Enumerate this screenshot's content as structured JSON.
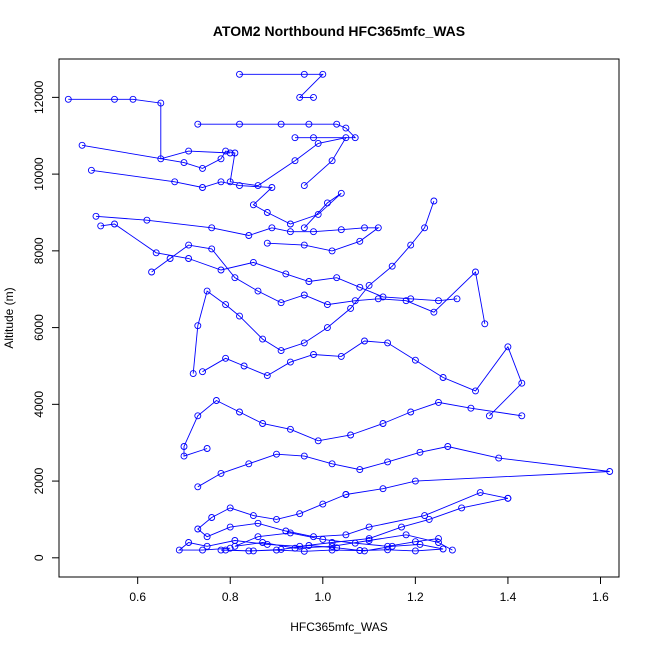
{
  "chart_data": {
    "type": "line",
    "title": "ATOM2 Northbound HFC365mfc_WAS",
    "xlabel": "HFC365mfc_WAS",
    "ylabel": "Altitude (m)",
    "xlim": [
      0.43,
      1.64
    ],
    "ylim": [
      -500,
      13000
    ],
    "x_ticks": [
      0.6,
      0.8,
      1.0,
      1.2,
      1.4,
      1.6
    ],
    "y_ticks": [
      0,
      2000,
      4000,
      6000,
      8000,
      10000,
      12000
    ],
    "grid": false,
    "series_color": "#0000ff",
    "series": [
      {
        "x": [
          0.82,
          0.96,
          1.0,
          0.95,
          0.98
        ],
        "y": [
          12600,
          12600,
          12600,
          12000,
          12000
        ]
      },
      {
        "x": [
          0.45,
          0.55,
          0.59,
          0.65,
          0.65,
          0.71,
          0.8
        ],
        "y": [
          11950,
          11950,
          11950,
          11850,
          10400,
          10600,
          10550
        ]
      },
      {
        "x": [
          0.73,
          0.82,
          0.91,
          0.97,
          1.03,
          1.05,
          1.07,
          0.98,
          0.94
        ],
        "y": [
          11300,
          11300,
          11300,
          11300,
          11300,
          11200,
          10950,
          10950,
          10950
        ]
      },
      {
        "x": [
          0.48,
          0.7,
          0.74,
          0.78,
          0.79,
          0.81,
          0.8,
          0.86,
          0.94,
          0.99,
          1.05,
          1.02,
          0.96
        ],
        "y": [
          10750,
          10300,
          10150,
          10400,
          10600,
          10550,
          9800,
          9700,
          10350,
          10800,
          10950,
          10350,
          9700
        ]
      },
      {
        "x": [
          0.5,
          0.68,
          0.74,
          0.78,
          0.82,
          0.89,
          0.85,
          0.88,
          0.93,
          0.99,
          1.04,
          1.01,
          0.96
        ],
        "y": [
          10100,
          9800,
          9650,
          9800,
          9700,
          9650,
          9200,
          9000,
          8700,
          8950,
          9500,
          9250,
          8600
        ]
      },
      {
        "x": [
          0.51,
          0.62,
          0.76,
          0.84,
          0.89,
          0.93,
          0.98,
          1.04,
          1.09,
          1.12,
          1.08,
          1.02,
          0.96,
          0.88
        ],
        "y": [
          8900,
          8800,
          8600,
          8400,
          8600,
          8500,
          8500,
          8550,
          8600,
          8600,
          8250,
          8000,
          8150,
          8200
        ]
      },
      {
        "x": [
          0.52,
          0.55,
          0.64,
          0.71,
          0.78,
          0.85,
          0.92,
          0.97,
          1.03,
          1.08,
          1.13,
          1.19,
          1.25,
          1.29
        ],
        "y": [
          8650,
          8700,
          7950,
          7800,
          7500,
          7700,
          7400,
          7200,
          7300,
          7050,
          6800,
          6750,
          6700,
          6750
        ]
      },
      {
        "x": [
          0.63,
          0.67,
          0.71,
          0.76,
          0.81,
          0.86,
          0.91,
          0.96,
          1.01,
          1.07,
          1.12,
          1.18,
          1.24,
          1.33,
          1.35
        ],
        "y": [
          7450,
          7800,
          8150,
          8050,
          7300,
          6950,
          6650,
          6850,
          6600,
          6700,
          6750,
          6700,
          6400,
          7450,
          6100
        ]
      },
      {
        "x": [
          1.24,
          1.22,
          1.19,
          1.15,
          1.1,
          1.06,
          1.01,
          0.96,
          0.91,
          0.87,
          0.82,
          0.79,
          0.75,
          0.73,
          0.72
        ],
        "y": [
          9300,
          8600,
          8150,
          7600,
          7100,
          6500,
          6000,
          5600,
          5400,
          5700,
          6300,
          6600,
          6950,
          6050,
          4800
        ]
      },
      {
        "x": [
          0.74,
          0.79,
          0.83,
          0.88,
          0.93,
          0.98,
          1.04,
          1.09,
          1.14,
          1.2,
          1.26,
          1.33,
          1.4,
          1.43,
          1.36
        ],
        "y": [
          4850,
          5200,
          5000,
          4750,
          5100,
          5300,
          5250,
          5650,
          5600,
          5150,
          4700,
          4350,
          5500,
          4550,
          3700
        ]
      },
      {
        "x": [
          1.43,
          1.32,
          1.25,
          1.19,
          1.13,
          1.06,
          0.99,
          0.93,
          0.87,
          0.82,
          0.77,
          0.73,
          0.7,
          0.7,
          0.75
        ],
        "y": [
          3700,
          3900,
          4050,
          3800,
          3500,
          3200,
          3050,
          3350,
          3500,
          3800,
          4100,
          3700,
          2900,
          2650,
          2850
        ]
      },
      {
        "x": [
          0.73,
          0.78,
          0.84,
          0.9,
          0.96,
          1.02,
          1.08,
          1.14,
          1.21,
          1.27,
          1.38,
          1.62,
          1.2,
          1.13,
          1.05
        ],
        "y": [
          1850,
          2200,
          2450,
          2700,
          2650,
          2450,
          2300,
          2500,
          2750,
          2900,
          2600,
          2250,
          2000,
          1800,
          1650
        ]
      },
      {
        "x": [
          1.05,
          1.0,
          0.95,
          0.9,
          0.85,
          0.8,
          0.76,
          0.73,
          0.75,
          0.8,
          0.86,
          0.92,
          0.98,
          1.05,
          1.1,
          1.22,
          1.34,
          1.4
        ],
        "y": [
          1650,
          1400,
          1150,
          1000,
          1100,
          1300,
          1050,
          750,
          550,
          800,
          900,
          700,
          550,
          600,
          800,
          1100,
          1700,
          1550
        ]
      },
      {
        "x": [
          1.4,
          1.3,
          1.23,
          1.17,
          1.1,
          1.02,
          0.95,
          0.88,
          0.81,
          0.75,
          0.71,
          0.69,
          0.74,
          0.8
        ],
        "y": [
          1550,
          1300,
          1000,
          800,
          500,
          400,
          300,
          350,
          450,
          300,
          400,
          200,
          200,
          250
        ]
      },
      {
        "x": [
          0.78,
          0.84,
          0.9,
          0.96,
          1.02,
          1.08,
          1.14,
          1.2,
          1.26,
          1.21,
          1.15,
          1.09,
          1.03,
          0.97,
          0.91,
          0.85,
          0.79
        ],
        "y": [
          200,
          180,
          200,
          170,
          200,
          190,
          210,
          180,
          230,
          350,
          300,
          180,
          260,
          320,
          220,
          180,
          200
        ]
      },
      {
        "x": [
          1.28,
          1.25,
          1.18,
          1.1,
          1.02,
          0.94,
          0.87,
          0.81,
          0.86,
          0.93,
          1.0,
          1.07,
          1.14,
          1.2,
          1.25
        ],
        "y": [
          200,
          400,
          600,
          450,
          300,
          250,
          400,
          300,
          550,
          650,
          480,
          380,
          300,
          420,
          500
        ]
      }
    ]
  }
}
